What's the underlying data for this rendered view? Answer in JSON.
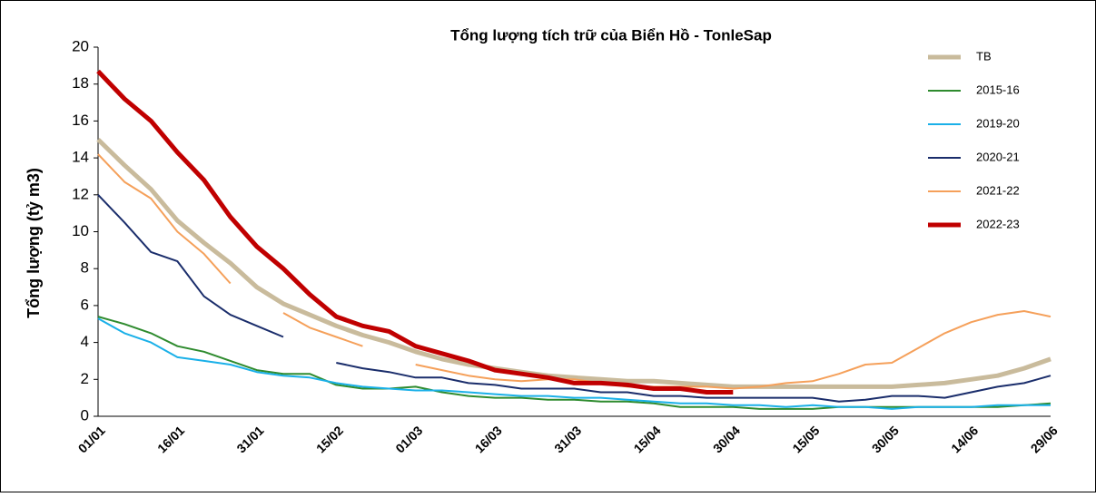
{
  "chart_data": {
    "type": "line",
    "title": "Tổng lượng tích trữ của Biển Hồ - TonleSap",
    "y_label": "Tổng lượng (tỷ m3)",
    "categories": [
      "01/01",
      null,
      null,
      "16/01",
      null,
      null,
      "31/01",
      null,
      null,
      "15/02",
      null,
      null,
      "01/03",
      null,
      null,
      "16/03",
      null,
      null,
      "31/03",
      null,
      null,
      "15/04",
      null,
      null,
      "30/04",
      null,
      null,
      "15/05",
      null,
      null,
      "30/05",
      null,
      null,
      "14/06",
      null,
      null,
      "29/06"
    ],
    "ylim": [
      0,
      20
    ],
    "yticks": [
      0,
      2,
      4,
      6,
      8,
      10,
      12,
      14,
      16,
      18,
      20
    ],
    "series": [
      {
        "name": "TB",
        "color": "#c9bb9c",
        "line_width": 5,
        "values": [
          15.0,
          13.6,
          12.3,
          10.6,
          9.4,
          8.3,
          7.0,
          6.1,
          5.5,
          4.9,
          4.4,
          4.0,
          3.5,
          3.1,
          2.8,
          2.6,
          2.4,
          2.2,
          2.1,
          2.0,
          1.9,
          1.9,
          1.8,
          1.7,
          1.6,
          1.6,
          1.6,
          1.6,
          1.6,
          1.6,
          1.6,
          1.7,
          1.8,
          2.0,
          2.2,
          2.6,
          3.1
        ]
      },
      {
        "name": "2015-16",
        "color": "#2e8b2e",
        "line_width": 2,
        "values": [
          5.4,
          5.0,
          4.5,
          3.8,
          3.5,
          3.0,
          2.5,
          2.3,
          2.3,
          1.7,
          1.5,
          1.5,
          1.6,
          1.3,
          1.1,
          1.0,
          1.0,
          0.9,
          0.9,
          0.8,
          0.8,
          0.7,
          0.5,
          0.5,
          0.5,
          0.4,
          0.4,
          0.4,
          0.5,
          0.5,
          0.5,
          0.5,
          0.5,
          0.5,
          0.5,
          0.6,
          0.7
        ]
      },
      {
        "name": "2019-20",
        "color": "#1ab0e8",
        "line_width": 2,
        "values": [
          5.3,
          4.5,
          4.0,
          3.2,
          3.0,
          2.8,
          2.4,
          2.2,
          2.1,
          1.8,
          1.6,
          1.5,
          1.4,
          1.4,
          1.3,
          1.2,
          1.1,
          1.1,
          1.0,
          1.0,
          0.9,
          0.8,
          0.7,
          0.7,
          0.6,
          0.6,
          0.5,
          0.6,
          0.5,
          0.5,
          0.4,
          0.5,
          0.5,
          0.5,
          0.6,
          0.6,
          0.6
        ]
      },
      {
        "name": "2020-21",
        "color": "#1a2d6b",
        "line_width": 2,
        "values": [
          12.0,
          10.5,
          8.9,
          8.4,
          6.5,
          5.5,
          4.9,
          4.3,
          null,
          2.9,
          2.6,
          2.4,
          2.1,
          2.1,
          1.8,
          1.7,
          1.5,
          1.5,
          1.5,
          1.3,
          1.3,
          1.1,
          1.1,
          1.0,
          1.0,
          1.0,
          1.0,
          1.0,
          0.8,
          0.9,
          1.1,
          1.1,
          1.0,
          1.3,
          1.6,
          1.8,
          2.2
        ]
      },
      {
        "name": "2021-22",
        "color": "#f5a05a",
        "line_width": 2,
        "values": [
          14.2,
          12.7,
          11.8,
          10.0,
          8.8,
          7.2,
          null,
          5.6,
          4.8,
          4.3,
          3.8,
          null,
          2.8,
          2.5,
          2.2,
          2.0,
          1.9,
          2.0,
          2.0,
          1.8,
          1.6,
          1.6,
          1.6,
          1.6,
          1.5,
          1.6,
          1.8,
          1.9,
          2.3,
          2.8,
          2.9,
          3.7,
          4.5,
          5.1,
          5.5,
          5.7,
          5.4
        ]
      },
      {
        "name": "2022-23",
        "color": "#c00000",
        "line_width": 5,
        "values": [
          18.7,
          17.2,
          16.0,
          14.3,
          12.8,
          10.8,
          9.2,
          8.0,
          6.6,
          5.4,
          4.9,
          4.6,
          3.8,
          3.4,
          3.0,
          2.5,
          2.3,
          2.1,
          1.8,
          1.8,
          1.7,
          1.5,
          1.5,
          1.3,
          1.3,
          null,
          null,
          null,
          null,
          null,
          null,
          null,
          null,
          null,
          null,
          null,
          null
        ]
      }
    ]
  }
}
